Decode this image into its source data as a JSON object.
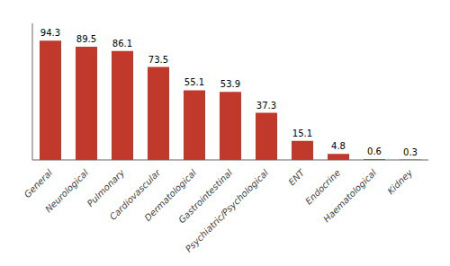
{
  "chart_data": {
    "type": "bar",
    "categories": [
      "General",
      "Neurological",
      "Pulmonary",
      "Cardiovascular",
      "Dermatological",
      "Gastrointestinal",
      "Psychiatric/Psychological",
      "ENT",
      "Endocrine",
      "Haematological",
      "Kidney"
    ],
    "values": [
      94.3,
      89.5,
      86.1,
      73.5,
      55.1,
      53.9,
      37.3,
      15.1,
      4.8,
      0.6,
      0.3
    ],
    "color": "#c0392b",
    "ylim": [
      0,
      108
    ],
    "data_labels": true,
    "tick_labels": "x",
    "grid": false
  }
}
